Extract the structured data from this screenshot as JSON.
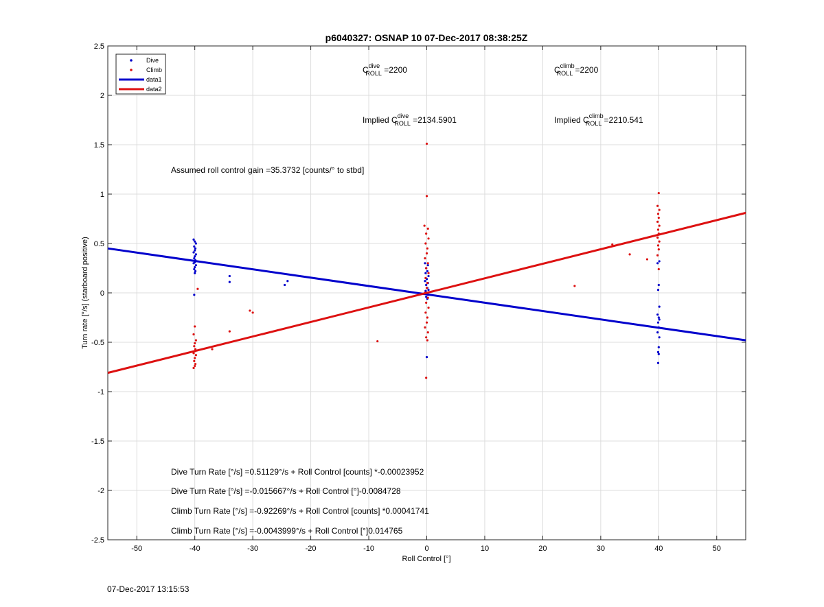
{
  "chart_data": {
    "type": "scatter",
    "title": "p6040327: OSNAP 10 07-Dec-2017 08:38:25Z",
    "xlabel": "Roll Control [°]",
    "ylabel": "Turn rate [°/s] (starboard positive)",
    "xlim": [
      -55,
      55
    ],
    "ylim": [
      -2.5,
      2.5
    ],
    "xticks": [
      -50,
      -40,
      -30,
      -20,
      -10,
      0,
      10,
      20,
      30,
      40,
      50
    ],
    "yticks": [
      2.5,
      2,
      1.5,
      1,
      0.5,
      0,
      -0.5,
      -1,
      -1.5,
      -2,
      -2.5
    ],
    "grid": true,
    "legend_position": "top-left",
    "legend": [
      {
        "label": "Dive",
        "kind": "marker",
        "color": "#0000cc"
      },
      {
        "label": "Climb",
        "kind": "marker",
        "color": "#dd1111"
      },
      {
        "label": "data1",
        "kind": "line",
        "color": "#0000cc"
      },
      {
        "label": "data2",
        "kind": "line",
        "color": "#dd1111"
      }
    ],
    "series": [
      {
        "name": "Dive",
        "kind": "scatter",
        "color": "#0000cc",
        "points": [
          [
            -40.2,
            0.54
          ],
          [
            -40,
            0.52
          ],
          [
            -39.8,
            0.5
          ],
          [
            -40.1,
            0.47
          ],
          [
            -39.9,
            0.45
          ],
          [
            -40,
            0.43
          ],
          [
            -40.2,
            0.41
          ],
          [
            -39.8,
            0.39
          ],
          [
            -40,
            0.37
          ],
          [
            -40.1,
            0.35
          ],
          [
            -39.9,
            0.33
          ],
          [
            -40,
            0.31
          ],
          [
            -40.2,
            0.3
          ],
          [
            -39.8,
            0.28
          ],
          [
            -40,
            0.26
          ],
          [
            -40.1,
            0.24
          ],
          [
            -39.9,
            0.22
          ],
          [
            -40,
            0.2
          ],
          [
            -40.1,
            -0.02
          ],
          [
            -34,
            0.17
          ],
          [
            -34,
            0.11
          ],
          [
            -24,
            0.12
          ],
          [
            -24.5,
            0.08
          ],
          [
            -0.3,
            0.3
          ],
          [
            0.2,
            0.28
          ],
          [
            -0.1,
            0.25
          ],
          [
            0.1,
            0.22
          ],
          [
            -0.2,
            0.2
          ],
          [
            0.3,
            0.17
          ],
          [
            0,
            0.14
          ],
          [
            -0.3,
            0.12
          ],
          [
            0.2,
            0.1
          ],
          [
            -0.1,
            0.08
          ],
          [
            0.1,
            0.05
          ],
          [
            0.3,
            0.03
          ],
          [
            -0.2,
            0.02
          ],
          [
            0,
            0
          ],
          [
            0.2,
            -0.02
          ],
          [
            -0.1,
            -0.04
          ],
          [
            0.1,
            -0.06
          ],
          [
            0,
            -0.65
          ],
          [
            40.1,
            0.32
          ],
          [
            39.8,
            0.3
          ],
          [
            40,
            0.08
          ],
          [
            39.9,
            0.03
          ],
          [
            40.1,
            -0.14
          ],
          [
            39.8,
            -0.22
          ],
          [
            40,
            -0.25
          ],
          [
            40.1,
            -0.27
          ],
          [
            39.9,
            -0.3
          ],
          [
            40,
            -0.35
          ],
          [
            39.8,
            -0.4
          ],
          [
            40.1,
            -0.45
          ],
          [
            40,
            -0.55
          ],
          [
            39.9,
            -0.6
          ],
          [
            40,
            -0.62
          ],
          [
            39.9,
            -0.71
          ]
        ]
      },
      {
        "name": "Climb",
        "kind": "scatter",
        "color": "#dd1111",
        "points": [
          [
            -39.5,
            0.04
          ],
          [
            -40,
            -0.34
          ],
          [
            -40.2,
            -0.42
          ],
          [
            -39.8,
            -0.48
          ],
          [
            -40,
            -0.51
          ],
          [
            -40.1,
            -0.54
          ],
          [
            -39.9,
            -0.57
          ],
          [
            -40,
            -0.59
          ],
          [
            -40.2,
            -0.61
          ],
          [
            -39.8,
            -0.63
          ],
          [
            -40,
            -0.66
          ],
          [
            -40.1,
            -0.69
          ],
          [
            -39.9,
            -0.72
          ],
          [
            -40,
            -0.74
          ],
          [
            -40.2,
            -0.76
          ],
          [
            -37,
            -0.57
          ],
          [
            -34,
            -0.39
          ],
          [
            -30.5,
            -0.18
          ],
          [
            -30,
            -0.2
          ],
          [
            -8.5,
            -0.49
          ],
          [
            0,
            1.51
          ],
          [
            0,
            0.98
          ],
          [
            -0.4,
            0.68
          ],
          [
            0.2,
            0.65
          ],
          [
            -0.1,
            0.6
          ],
          [
            0.3,
            0.55
          ],
          [
            -0.2,
            0.5
          ],
          [
            0.1,
            0.45
          ],
          [
            0,
            0.4
          ],
          [
            -0.3,
            0.35
          ],
          [
            0.2,
            0.3
          ],
          [
            -0.1,
            0.25
          ],
          [
            0.3,
            0.2
          ],
          [
            -0.2,
            0.15
          ],
          [
            0.1,
            0.1
          ],
          [
            0,
            0.05
          ],
          [
            -0.3,
            0
          ],
          [
            0.2,
            -0.05
          ],
          [
            -0.1,
            -0.1
          ],
          [
            0.3,
            -0.15
          ],
          [
            -0.2,
            -0.2
          ],
          [
            0.1,
            -0.25
          ],
          [
            0,
            -0.3
          ],
          [
            -0.3,
            -0.35
          ],
          [
            0.2,
            -0.4
          ],
          [
            -0.1,
            -0.45
          ],
          [
            0.1,
            -0.48
          ],
          [
            -0.1,
            -0.86
          ],
          [
            25.5,
            0.07
          ],
          [
            32,
            0.49
          ],
          [
            35,
            0.39
          ],
          [
            38,
            0.34
          ],
          [
            40,
            1.01
          ],
          [
            39.8,
            0.88
          ],
          [
            40.1,
            0.84
          ],
          [
            39.9,
            0.8
          ],
          [
            40,
            0.76
          ],
          [
            39.8,
            0.72
          ],
          [
            40.1,
            0.68
          ],
          [
            39.9,
            0.64
          ],
          [
            40,
            0.6
          ],
          [
            39.8,
            0.56
          ],
          [
            40.1,
            0.52
          ],
          [
            39.9,
            0.48
          ],
          [
            40,
            0.44
          ],
          [
            39.8,
            0.38
          ],
          [
            40,
            0.24
          ]
        ]
      },
      {
        "name": "data1",
        "kind": "line",
        "color": "#0000cc",
        "points": [
          [
            -55,
            0.45
          ],
          [
            55,
            -0.48
          ]
        ]
      },
      {
        "name": "data2",
        "kind": "line",
        "color": "#dd1111",
        "points": [
          [
            -55,
            -0.81
          ],
          [
            55,
            0.81
          ]
        ]
      }
    ],
    "annotations": {
      "c_dive": {
        "prefix": "C",
        "sup": "dive",
        "sub": "ROLL",
        "suffix": " =2200"
      },
      "c_climb": {
        "prefix": "C",
        "sup": "climb",
        "sub": "ROLL",
        "suffix": " =2200"
      },
      "implied_dive": {
        "prefix": "Implied C",
        "sup": "dive",
        "sub": "ROLL",
        "suffix": " =2134.5901"
      },
      "implied_climb": {
        "prefix": "Implied C",
        "sup": "climb",
        "sub": "ROLL",
        "suffix": " =2210.541"
      },
      "gain": "Assumed roll control gain =35.3732 [counts/° to stbd]",
      "equations": [
        "Dive Turn Rate [°/s] =0.51129°/s + Roll Control [counts] *-0.00023952",
        "Dive Turn Rate [°/s] =-0.015667°/s + Roll Control [°]-0.0084728",
        "Climb Turn Rate [°/s] =-0.92269°/s + Roll Control [counts] *0.00041741",
        "Climb Turn Rate [°/s] =-0.0043999°/s + Roll Control [°]0.014765"
      ]
    }
  },
  "footer": {
    "timestamp": "07-Dec-2017 13:15:53"
  }
}
